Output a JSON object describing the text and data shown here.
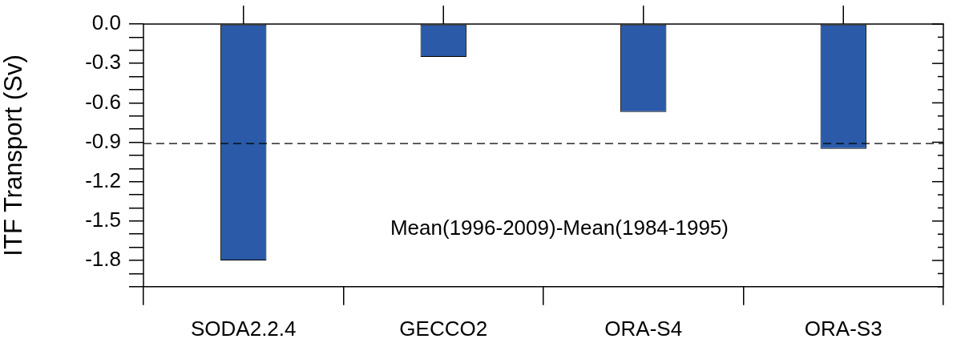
{
  "chart_data": {
    "type": "bar",
    "ylabel": "ITF Transport (Sv)",
    "categories": [
      "SODA2.2.4",
      "GECCO2",
      "ORA-S4",
      "ORA-S3"
    ],
    "values": [
      -1.8,
      -0.25,
      -0.67,
      -0.95
    ],
    "color": "#2a5aa8",
    "ylim": [
      -2.0,
      0.0
    ],
    "yticks": [
      {
        "value": 0,
        "label": "0.0"
      },
      {
        "value": -0.1,
        "label": null
      },
      {
        "value": -0.2,
        "label": null
      },
      {
        "value": -0.3,
        "label": "-0.3"
      },
      {
        "value": -0.4,
        "label": null
      },
      {
        "value": -0.5,
        "label": null
      },
      {
        "value": -0.6,
        "label": "-0.6"
      },
      {
        "value": -0.7,
        "label": null
      },
      {
        "value": -0.8,
        "label": null
      },
      {
        "value": -0.9,
        "label": "-0.9"
      },
      {
        "value": -1.0,
        "label": null
      },
      {
        "value": -1.1,
        "label": null
      },
      {
        "value": -1.2,
        "label": "-1.2"
      },
      {
        "value": -1.3,
        "label": null
      },
      {
        "value": -1.4,
        "label": null
      },
      {
        "value": -1.5,
        "label": "-1.5"
      },
      {
        "value": -1.6,
        "label": null
      },
      {
        "value": -1.7,
        "label": null
      },
      {
        "value": -1.8,
        "label": "-1.8"
      },
      {
        "value": -1.9,
        "label": null
      },
      {
        "value": -2.0,
        "label": null
      }
    ],
    "ref_lines": [
      {
        "axis": "y",
        "value": -0.91,
        "line_style": "dashed"
      }
    ],
    "annotations": [
      "Mean(1996-2009)-Mean(1984-1995)"
    ],
    "grid": false,
    "legend": false
  }
}
